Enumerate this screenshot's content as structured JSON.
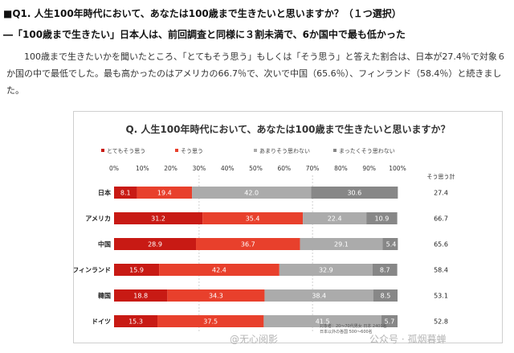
{
  "article": {
    "heading": "■Q1. 人生100年時代において、あなたは100歳まで生きたいと思いますか？（１つ選択）",
    "subheading": "―「100歳まで生きたい」日本人は、前回調査と同様に３割未満で、6か国中で最も低かった",
    "body": "100歳まで生きたいかを聞いたところ、「とてもそう思う」もしくは「そう思う」と答えた割合は、日本が27.4％で対象６か国の中で最低でした。最も高かったのはアメリカの66.7％で、次いで中国（65.6％）、フィンランド（58.4％）と続きました。"
  },
  "colors": {
    "strongly_agree": "#c81a14",
    "agree": "#e8402c",
    "disagree": "#ababab",
    "strongly_disagree": "#878787"
  },
  "chart_data": {
    "type": "bar",
    "orientation": "horizontal",
    "stacked": true,
    "title": "Q. 人生100年時代において、あなたは100歳まで生きたいと思いますか？",
    "categories": [
      "日本",
      "アメリカ",
      "中国",
      "フィンランド",
      "韓国",
      "ドイツ"
    ],
    "series": [
      {
        "name": "とてもそう思う",
        "values": [
          8.1,
          31.2,
          28.9,
          15.9,
          18.8,
          15.3
        ]
      },
      {
        "name": "そう思う",
        "values": [
          19.4,
          35.4,
          36.7,
          42.4,
          34.3,
          37.5
        ]
      },
      {
        "name": "あまりそう思わない",
        "values": [
          42.0,
          22.4,
          29.1,
          32.9,
          38.4,
          41.5
        ]
      },
      {
        "name": "まったくそう思わない",
        "values": [
          30.6,
          10.9,
          5.4,
          8.7,
          8.5,
          5.7
        ]
      }
    ],
    "x_ticks": [
      "0%",
      "10%",
      "20%",
      "30%",
      "40%",
      "50%",
      "60%",
      "70%",
      "80%",
      "90%",
      "100%"
    ],
    "xlim": [
      0,
      100
    ],
    "grid": true,
    "legend_position": "top",
    "total_column": {
      "label": "そう思う計",
      "values": [
        "27.4",
        "66.7",
        "65.6",
        "58.4",
        "53.1",
        "52.8"
      ]
    },
    "source_lines": [
      "対象者：20〜70代男女 日本 2400名",
      "日本以外の各国 500〜600名"
    ]
  },
  "watermarks": [
    "@无心阅影",
    "公众号 · 孤烟暮蝉"
  ]
}
